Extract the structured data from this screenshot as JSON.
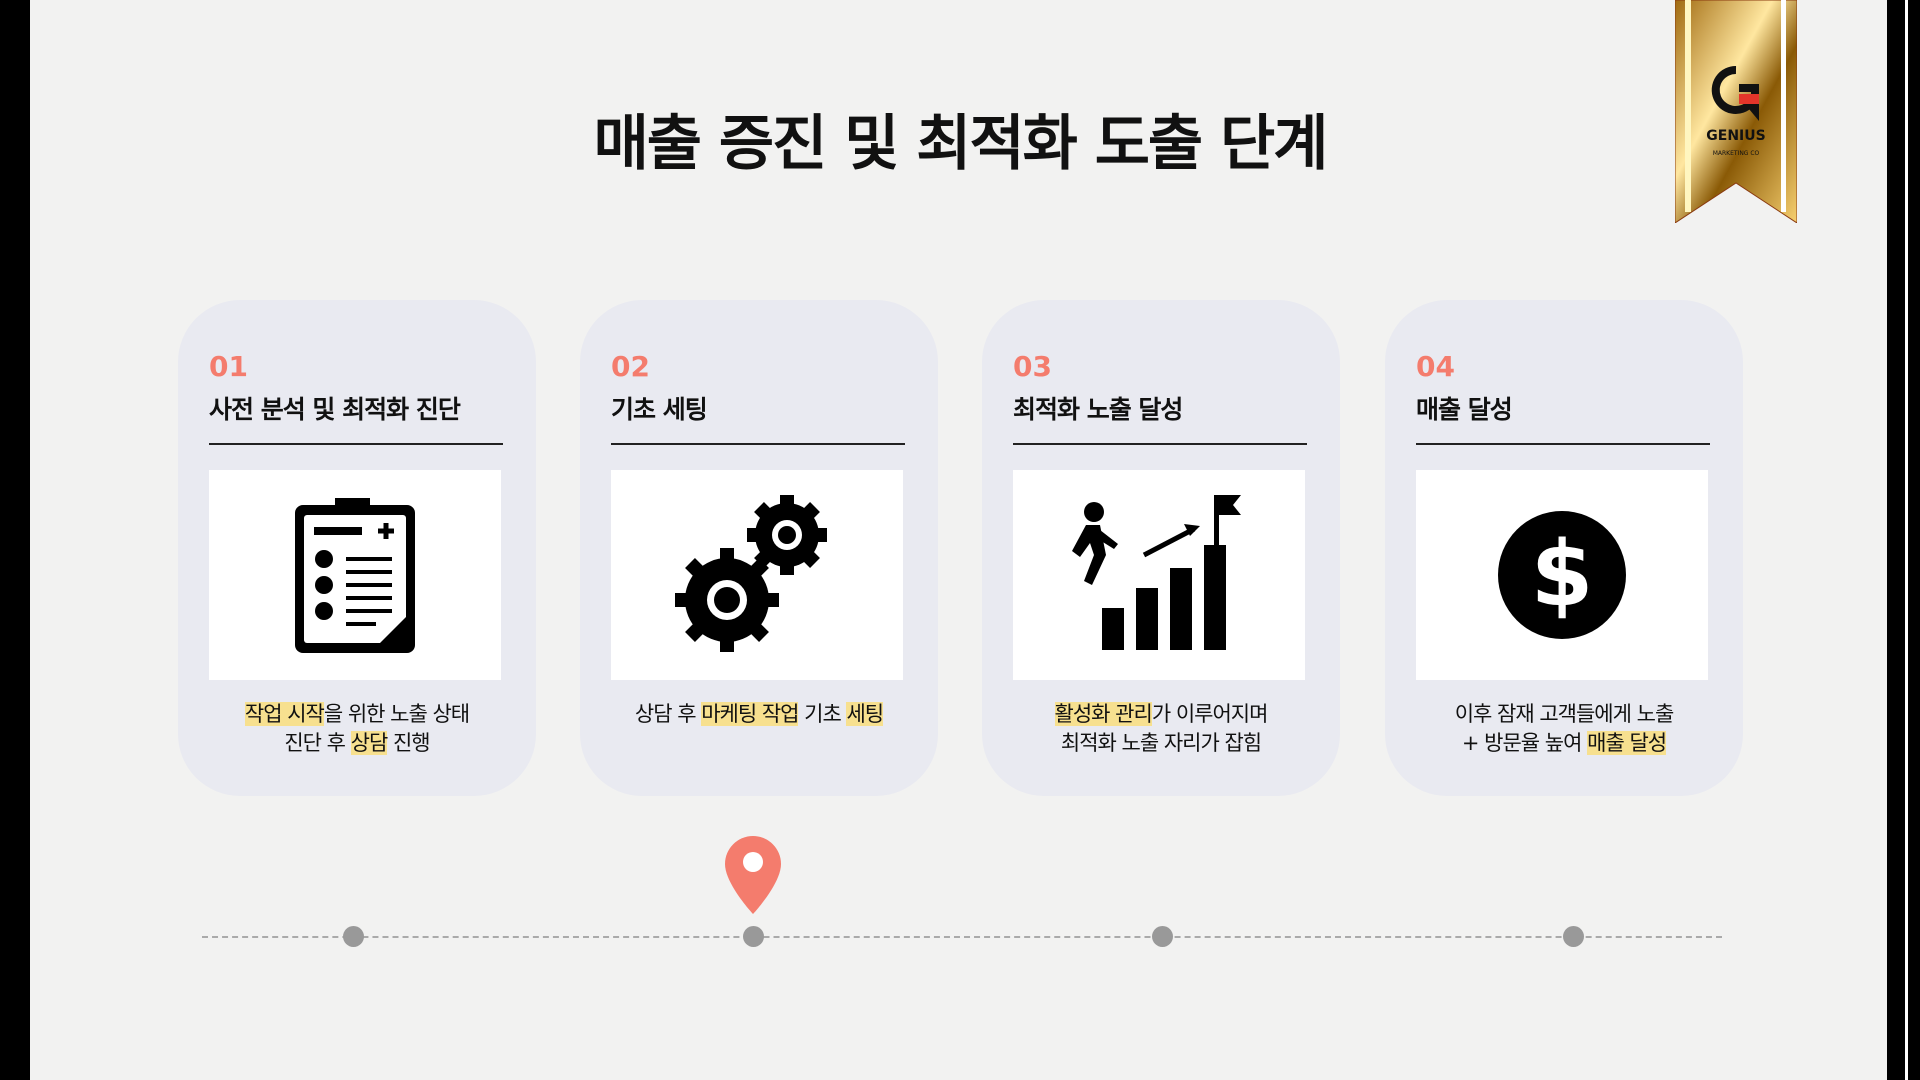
{
  "title": "매출 증진 및 최적화 도출 단계",
  "logo": {
    "name": "GENIUS",
    "sub": "MARKETING CO"
  },
  "colors": {
    "accent": "#f47c6d",
    "highlight": "#f7e08f",
    "card": "#e9eaf1"
  },
  "steps": [
    {
      "num": "01",
      "title": "사전 분석 및 최적화 진단",
      "icon": "clipboard-checklist-icon",
      "desc": [
        {
          "t": "작업 시작",
          "h": true
        },
        {
          "t": "을 위한 노출 상태"
        },
        {
          "br": true
        },
        {
          "t": "진단 후 "
        },
        {
          "t": "상담",
          "h": true
        },
        {
          "t": " 진행"
        }
      ]
    },
    {
      "num": "02",
      "title": "기초 세팅",
      "icon": "gears-icon",
      "desc": [
        {
          "t": "상담 후 "
        },
        {
          "t": "마케팅 작업",
          "h": true
        },
        {
          "t": " 기초 "
        },
        {
          "t": "세팅",
          "h": true
        }
      ]
    },
    {
      "num": "03",
      "title": "최적화 노출 달성",
      "icon": "growth-climb-icon",
      "desc": [
        {
          "t": "활성화 관리",
          "h": true
        },
        {
          "t": "가 이루어지며"
        },
        {
          "br": true
        },
        {
          "t": "최적화 노출 자리가 잡힘"
        }
      ]
    },
    {
      "num": "04",
      "title": "매출 달성",
      "icon": "dollar-coin-icon",
      "desc": [
        {
          "t": "이후 잠재 고객들에게 노출"
        },
        {
          "br": true
        },
        {
          "t": "+ 방문율 높여 "
        },
        {
          "t": "매출 달성",
          "h": true
        }
      ]
    }
  ],
  "timeline": {
    "current_step": 2,
    "steps": 4
  }
}
